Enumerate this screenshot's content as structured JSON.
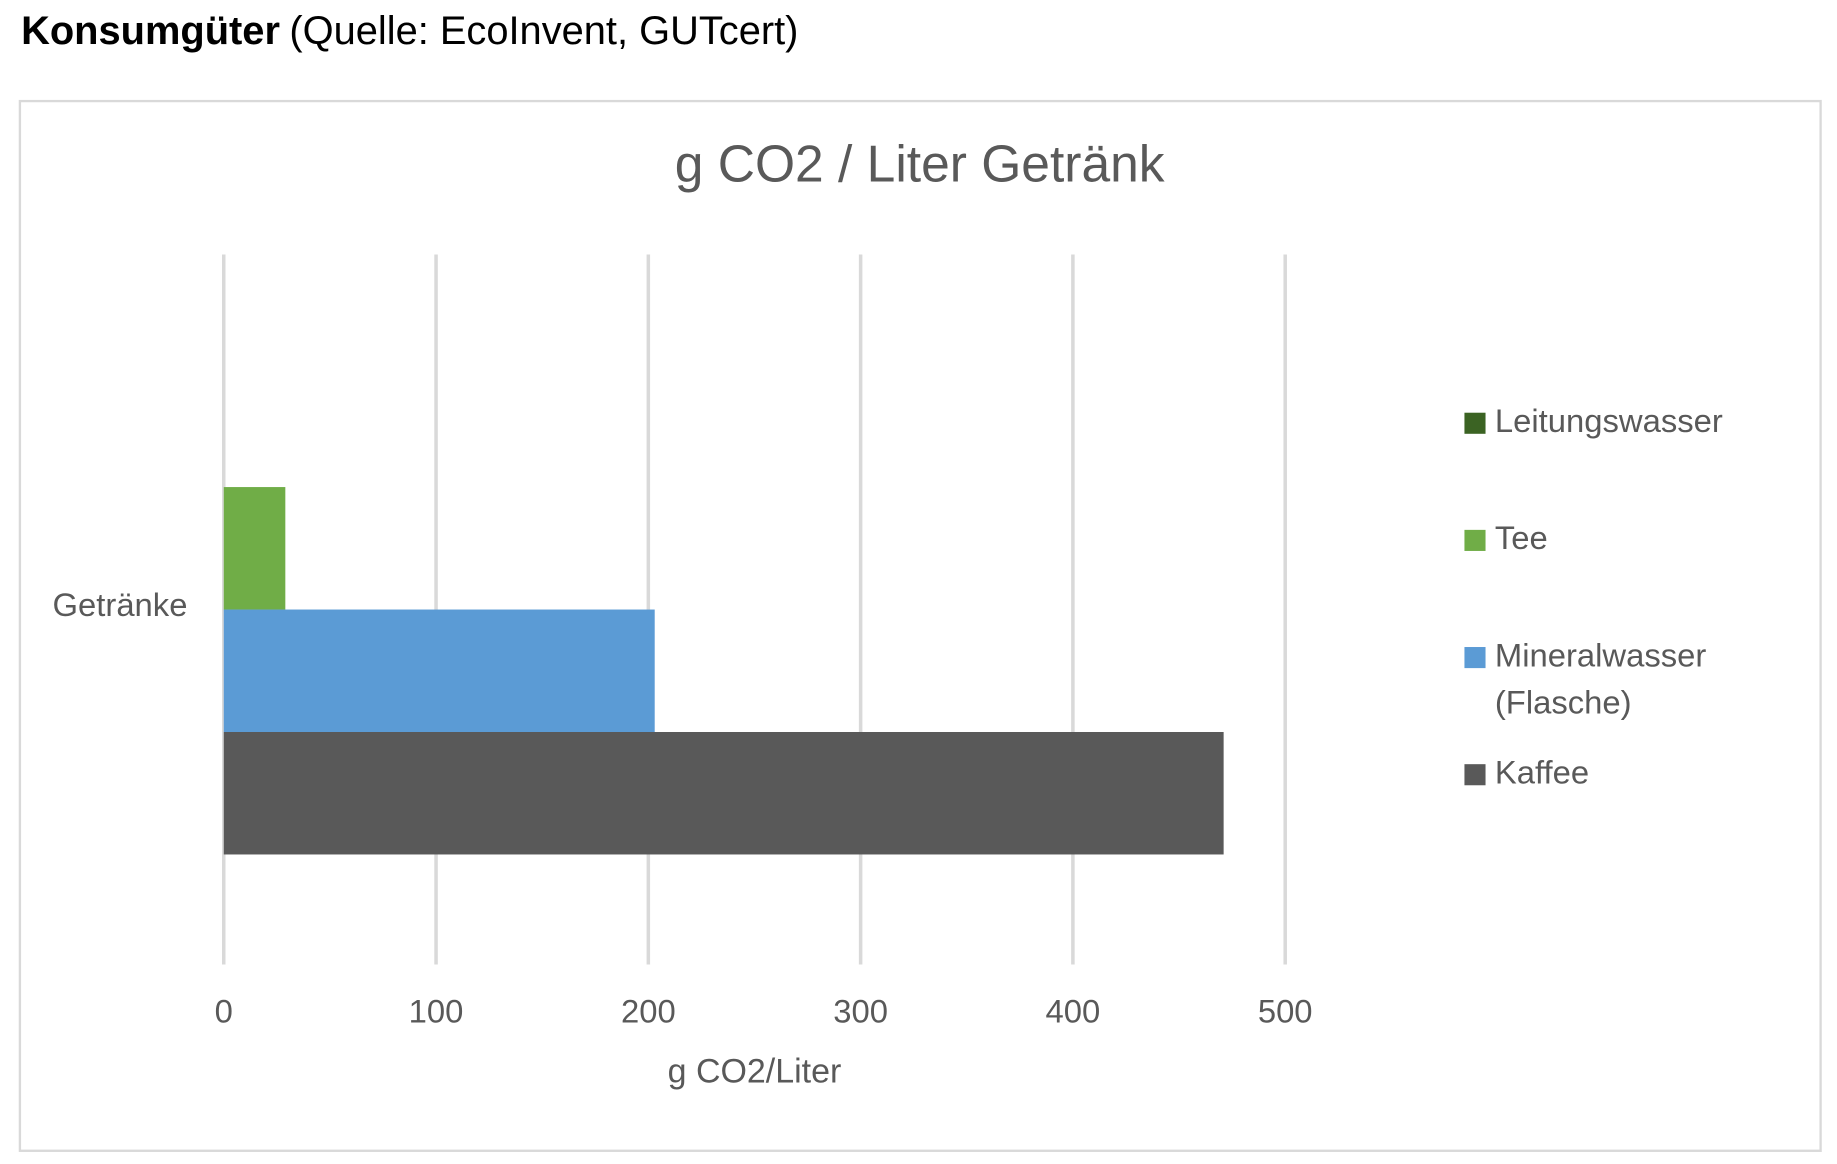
{
  "header": {
    "title": "Konsumgüter",
    "source": "(Quelle: EcoInvent, GUTcert)"
  },
  "chart_data": {
    "type": "bar",
    "orientation": "horizontal",
    "title": "g CO2 / Liter Getränk",
    "x_label": "g CO2/Liter",
    "categories": [
      "Getränke"
    ],
    "series": [
      {
        "name": "Leitungswasser",
        "color": "#3b6323",
        "values": [
          0
        ]
      },
      {
        "name": "Tee",
        "color": "#70ad47",
        "values": [
          29
        ]
      },
      {
        "name": "Mineralwasser (Flasche)",
        "color": "#5b9bd5",
        "values": [
          203
        ]
      },
      {
        "name": "Kaffee",
        "color": "#595959",
        "values": [
          471
        ]
      }
    ],
    "xlim": [
      0,
      500
    ],
    "xticks": [
      0,
      100,
      200,
      300,
      400,
      500
    ],
    "grid": true,
    "legend": "right"
  }
}
